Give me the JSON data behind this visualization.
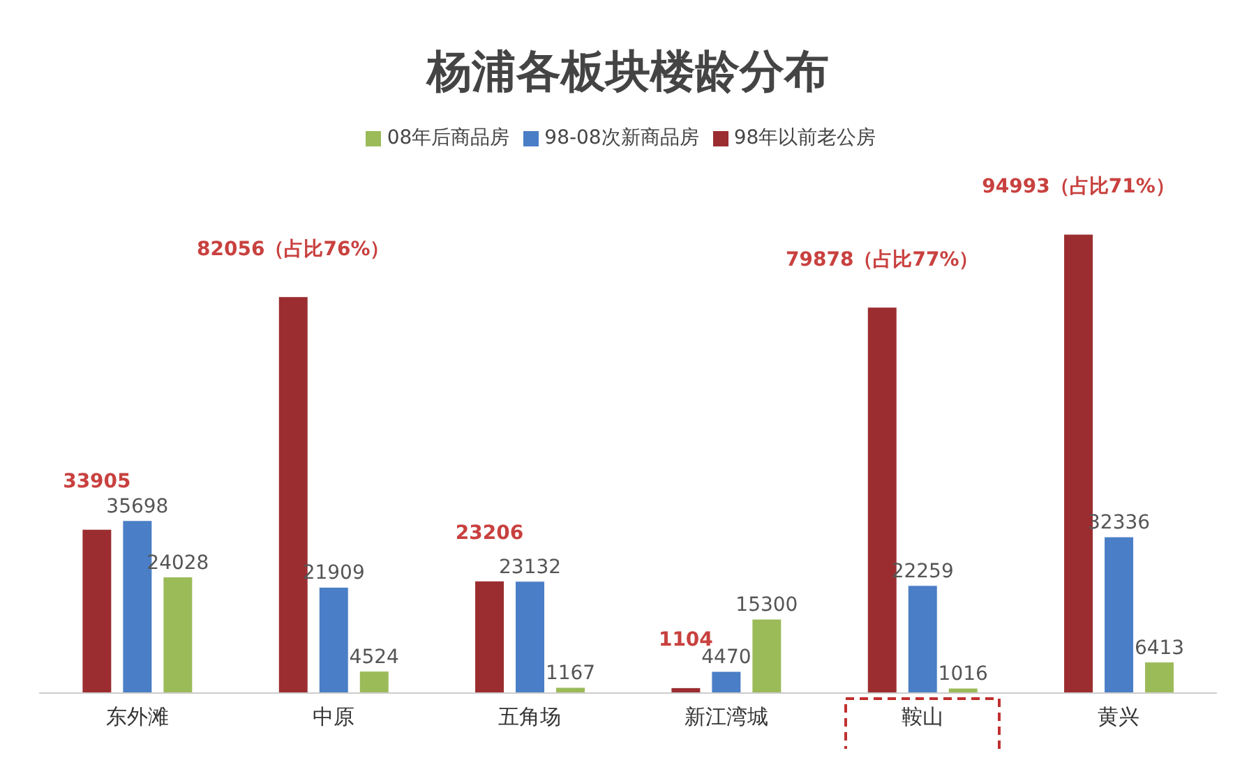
{
  "chart_data": {
    "type": "bar",
    "title": "杨浦各板块楼龄分布",
    "categories": [
      "东外滩",
      "中原",
      "五角场",
      "新江湾城",
      "鞍山",
      "黄兴"
    ],
    "series": [
      {
        "name": "98年以前老公房",
        "color": "#9b2d30",
        "values": [
          33905,
          82056,
          23206,
          1104,
          79878,
          94993
        ],
        "value_labels": [
          "33905",
          "82056（占比76%）",
          "23206",
          "1104",
          "79878（占比77%）",
          "94993（占比71%）"
        ]
      },
      {
        "name": "98-08次新商品房",
        "color": "#4a7ec6",
        "values": [
          35698,
          21909,
          23132,
          4470,
          22259,
          32336
        ],
        "value_labels": [
          "35698",
          "21909",
          "23132",
          "4470",
          "22259",
          "32336"
        ]
      },
      {
        "name": "08年后商品房",
        "color": "#9bbb59",
        "values": [
          24028,
          4524,
          1167,
          15300,
          1016,
          6413
        ],
        "value_labels": [
          "24028",
          "4524",
          "1167",
          "15300",
          "1016",
          "6413"
        ]
      }
    ],
    "legend": "top"
  }
}
